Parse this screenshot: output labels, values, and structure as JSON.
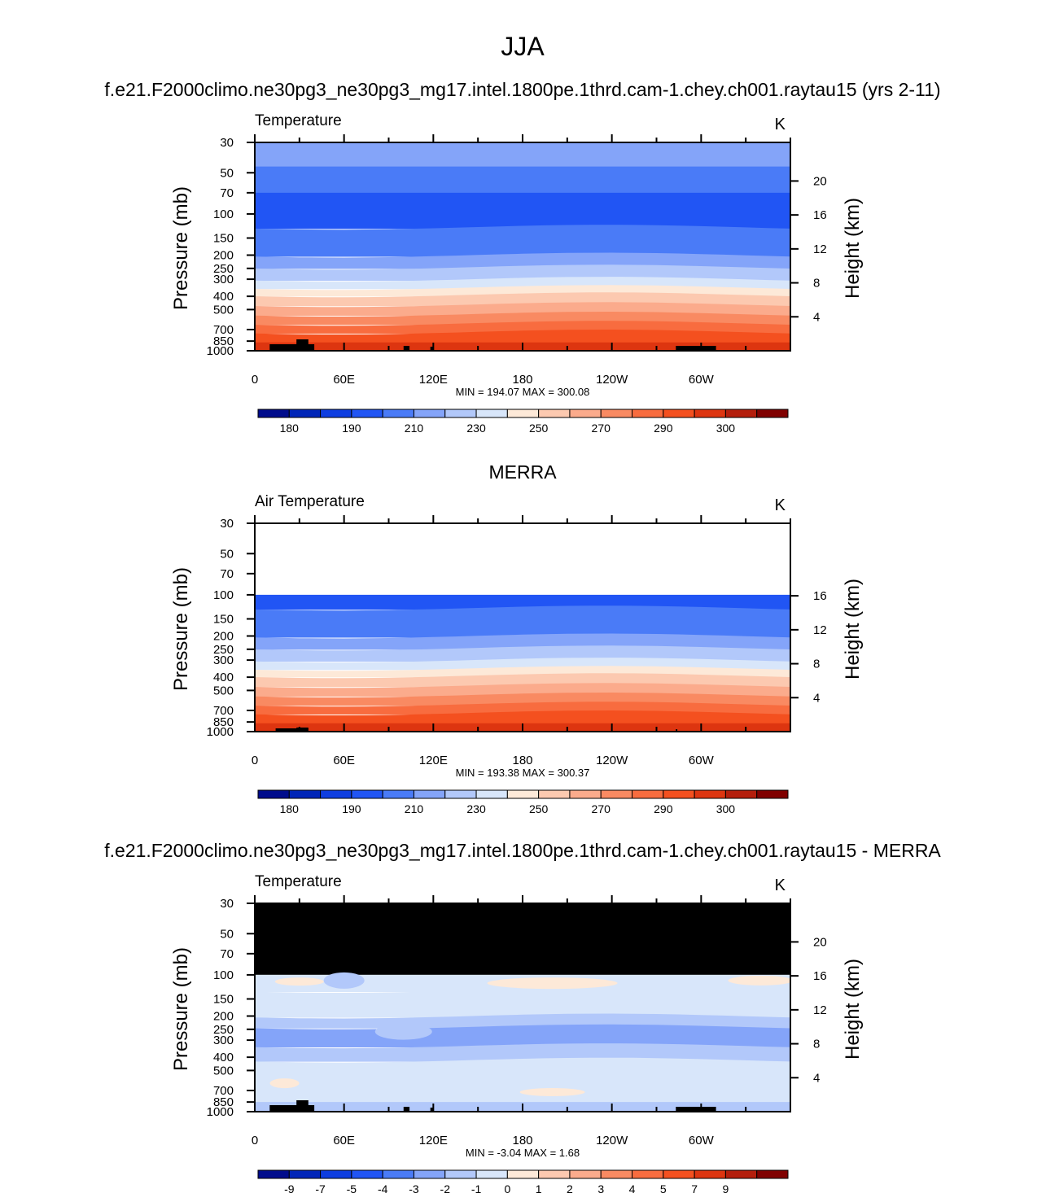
{
  "figure": {
    "title": "JJA",
    "subtitle_model": "f.e21.F2000climo.ne30pg3_ne30pg3_mg17.intel.1800pe.1thrd.cam-1.chey.ch001.raytau15 (yrs 2-11)",
    "subtitle_obs": "MERRA",
    "subtitle_diff": "f.e21.F2000climo.ne30pg3_ne30pg3_mg17.intel.1800pe.1thrd.cam-1.chey.ch001.raytau15 - MERRA"
  },
  "chart_data": [
    {
      "type": "heatmap",
      "panel": "model",
      "left_label": "Temperature",
      "right_label": "K",
      "ylabel": "Pressure (mb)",
      "ylabel_right": "Height (km)",
      "x_ticks": [
        "0",
        "60E",
        "120E",
        "180",
        "120W",
        "60W"
      ],
      "x_tick_lon": [
        0,
        60,
        120,
        180,
        240,
        300
      ],
      "xlim": [
        0,
        360
      ],
      "y_ticks": [
        30,
        50,
        70,
        100,
        150,
        200,
        250,
        300,
        400,
        500,
        700,
        850,
        1000
      ],
      "ylim": [
        30,
        1000
      ],
      "y_scale": "log",
      "right_ticks": [
        20,
        16,
        12,
        8,
        4
      ],
      "min_label": "MIN = 194.07  MAX = 300.08",
      "bands_top_to_bottom": [
        {
          "p_bottom": 45,
          "color": "#84a4f9"
        },
        {
          "p_bottom": 70,
          "color": "#4a7bf7"
        },
        {
          "p_bottom": 125,
          "color": "#2155f4"
        },
        {
          "p_bottom": 200,
          "color": "#4a7bf7"
        },
        {
          "p_bottom": 245,
          "color": "#84a4f9"
        },
        {
          "p_bottom": 300,
          "color": "#b2c8fa"
        },
        {
          "p_bottom": 345,
          "color": "#d8e6fa"
        },
        {
          "p_bottom": 390,
          "color": "#fde9d8"
        },
        {
          "p_bottom": 460,
          "color": "#fcc9b0"
        },
        {
          "p_bottom": 540,
          "color": "#fbab8c"
        },
        {
          "p_bottom": 630,
          "color": "#f98a62"
        },
        {
          "p_bottom": 730,
          "color": "#f86c3f"
        },
        {
          "p_bottom": 870,
          "color": "#f4501f"
        },
        {
          "p_bottom": 1000,
          "color": "#dd3510"
        }
      ],
      "colorbar": {
        "labels": [
          "180",
          "190",
          "210",
          "230",
          "250",
          "270",
          "290",
          "300"
        ],
        "colors": [
          "#000c8c",
          "#0025b8",
          "#0e3ee0",
          "#2155f4",
          "#4a7bf7",
          "#84a4f9",
          "#b2c8fa",
          "#d8e6fa",
          "#fde9d8",
          "#fcc9b0",
          "#fbab8c",
          "#f98a62",
          "#f86c3f",
          "#f4501f",
          "#dd3510",
          "#b41e0c",
          "#800000"
        ]
      }
    },
    {
      "type": "heatmap",
      "panel": "obs",
      "left_label": "Air Temperature",
      "right_label": "K",
      "ylabel": "Pressure (mb)",
      "ylabel_right": "Height (km)",
      "x_ticks": [
        "0",
        "60E",
        "120E",
        "180",
        "120W",
        "60W"
      ],
      "x_tick_lon": [
        0,
        60,
        120,
        180,
        240,
        300
      ],
      "xlim": [
        0,
        360
      ],
      "y_ticks": [
        30,
        50,
        70,
        100,
        150,
        200,
        250,
        300,
        400,
        500,
        700,
        850,
        1000
      ],
      "ylim": [
        30,
        1000
      ],
      "y_scale": "log",
      "right_ticks": [
        16,
        12,
        8,
        4
      ],
      "data_top_p": 100,
      "min_label": "MIN = 193.38  MAX = 300.37",
      "bands_top_to_bottom": [
        {
          "p_bottom": 125,
          "color": "#2155f4"
        },
        {
          "p_bottom": 200,
          "color": "#4a7bf7"
        },
        {
          "p_bottom": 245,
          "color": "#84a4f9"
        },
        {
          "p_bottom": 300,
          "color": "#b2c8fa"
        },
        {
          "p_bottom": 345,
          "color": "#d8e6fa"
        },
        {
          "p_bottom": 390,
          "color": "#fde9d8"
        },
        {
          "p_bottom": 460,
          "color": "#fcc9b0"
        },
        {
          "p_bottom": 540,
          "color": "#fbab8c"
        },
        {
          "p_bottom": 630,
          "color": "#f98a62"
        },
        {
          "p_bottom": 730,
          "color": "#f86c3f"
        },
        {
          "p_bottom": 870,
          "color": "#f4501f"
        },
        {
          "p_bottom": 1000,
          "color": "#dd3510"
        }
      ],
      "colorbar": {
        "labels": [
          "180",
          "190",
          "210",
          "230",
          "250",
          "270",
          "290",
          "300"
        ],
        "colors": [
          "#000c8c",
          "#0025b8",
          "#0e3ee0",
          "#2155f4",
          "#4a7bf7",
          "#84a4f9",
          "#b2c8fa",
          "#d8e6fa",
          "#fde9d8",
          "#fcc9b0",
          "#fbab8c",
          "#f98a62",
          "#f86c3f",
          "#f4501f",
          "#dd3510",
          "#b41e0c",
          "#800000"
        ]
      }
    },
    {
      "type": "heatmap",
      "panel": "diff",
      "left_label": "Temperature",
      "right_label": "K",
      "ylabel": "Pressure (mb)",
      "ylabel_right": "Height (km)",
      "x_ticks": [
        "0",
        "60E",
        "120E",
        "180",
        "120W",
        "60W"
      ],
      "x_tick_lon": [
        0,
        60,
        120,
        180,
        240,
        300
      ],
      "xlim": [
        0,
        360
      ],
      "y_ticks": [
        30,
        50,
        70,
        100,
        150,
        200,
        250,
        300,
        400,
        500,
        700,
        850,
        1000
      ],
      "ylim": [
        30,
        1000
      ],
      "y_scale": "log",
      "right_ticks": [
        20,
        16,
        12,
        8,
        4
      ],
      "missing_above_p": 100,
      "missing_color": "#000000",
      "min_label": "MIN =  -3.04  MAX =   1.68",
      "bands_top_to_bottom": [
        {
          "p_bottom": 130,
          "color": "#d8e6fa"
        },
        {
          "p_bottom": 200,
          "color": "#d8e6fa"
        },
        {
          "p_bottom": 240,
          "color": "#b2c8fa"
        },
        {
          "p_bottom": 330,
          "color": "#84a4f9"
        },
        {
          "p_bottom": 420,
          "color": "#b2c8fa"
        },
        {
          "p_bottom": 850,
          "color": "#d8e6fa"
        },
        {
          "p_bottom": 1000,
          "color": "#b2c8fa"
        }
      ],
      "colorbar": {
        "labels": [
          "-9",
          "-7",
          "-5",
          "-4",
          "-3",
          "-2",
          "-1",
          "0",
          "1",
          "2",
          "3",
          "4",
          "5",
          "7",
          "9"
        ],
        "colors": [
          "#000c8c",
          "#0025b8",
          "#0e3ee0",
          "#2155f4",
          "#4a7bf7",
          "#84a4f9",
          "#b2c8fa",
          "#d8e6fa",
          "#fde9d8",
          "#fcc9b0",
          "#fbab8c",
          "#f98a62",
          "#f86c3f",
          "#f4501f",
          "#dd3510",
          "#b41e0c",
          "#800000"
        ]
      }
    }
  ]
}
